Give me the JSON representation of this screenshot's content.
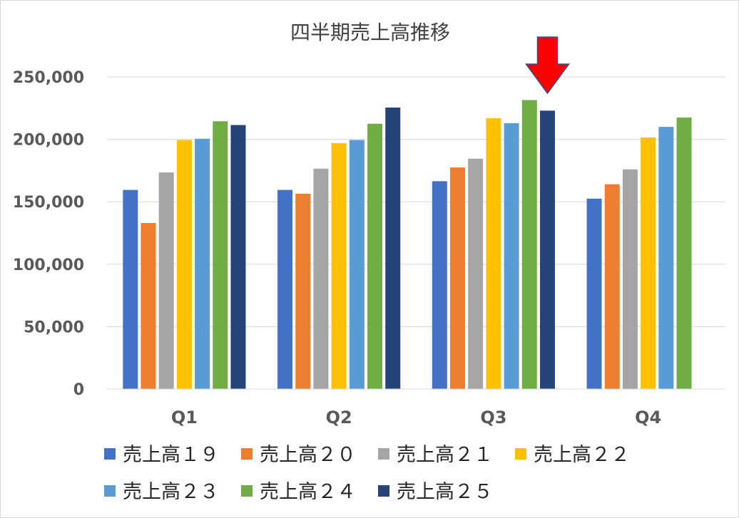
{
  "chart_data": {
    "type": "bar",
    "title": "四半期売上高推移",
    "xlabel": "",
    "ylabel": "",
    "categories": [
      "Q1",
      "Q2",
      "Q3",
      "Q4"
    ],
    "ylim": [
      0,
      250000
    ],
    "yticks": [
      0,
      50000,
      100000,
      150000,
      200000,
      250000
    ],
    "ytick_labels": [
      "0",
      "50,000",
      "100,000",
      "150,000",
      "200,000",
      "250,000"
    ],
    "grid": true,
    "legend_position": "bottom",
    "series": [
      {
        "name": "売上高１９",
        "color": "#4472C4",
        "values": [
          159500,
          159500,
          166500,
          152500
        ]
      },
      {
        "name": "売上高２０",
        "color": "#ED7D31",
        "values": [
          133000,
          156500,
          177500,
          164000
        ]
      },
      {
        "name": "売上高２１",
        "color": "#A5A5A5",
        "values": [
          173500,
          176500,
          184500,
          176000
        ]
      },
      {
        "name": "売上高２２",
        "color": "#FFC000",
        "values": [
          199500,
          197000,
          217000,
          201500
        ]
      },
      {
        "name": "売上高２３",
        "color": "#5B9BD5",
        "values": [
          200500,
          199500,
          213000,
          210000
        ]
      },
      {
        "name": "売上高２４",
        "color": "#70AD47",
        "values": [
          214500,
          212500,
          231500,
          217500
        ]
      },
      {
        "name": "売上高２５",
        "color": "#264478",
        "values": [
          211500,
          225500,
          223000,
          null
        ]
      }
    ],
    "annotation": {
      "type": "down-arrow",
      "color": "#FF0000",
      "category": "Q3",
      "series": "売上高２５"
    }
  }
}
